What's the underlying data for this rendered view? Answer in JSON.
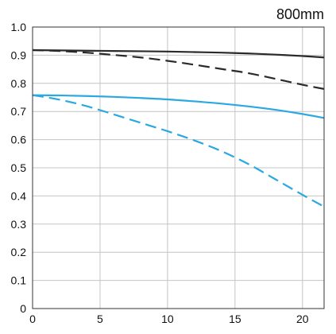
{
  "chart_data": {
    "type": "line",
    "title": "800mm",
    "xlabel": "",
    "ylabel": "",
    "xlim": [
      0,
      21.6
    ],
    "ylim": [
      0,
      1.0
    ],
    "x_ticks": [
      0,
      5,
      10,
      15,
      20
    ],
    "x_tick_labels": [
      "0",
      "5",
      "10",
      "15",
      "20"
    ],
    "y_ticks": [
      0,
      0.1,
      0.2,
      0.3,
      0.4,
      0.5,
      0.6,
      0.7,
      0.8,
      0.9,
      1.0
    ],
    "y_tick_labels": [
      "0",
      "0.1",
      "0.2",
      "0.3",
      "0.4",
      "0.5",
      "0.6",
      "0.7",
      "0.8",
      "0.9",
      "1.0"
    ],
    "grid": true,
    "legend": "none",
    "series": [
      {
        "color": "#2a2a2a",
        "dash": "solid",
        "x": [
          0,
          2,
          4,
          6,
          8,
          10,
          12,
          14,
          16,
          18,
          20,
          21.6
        ],
        "y": [
          0.918,
          0.917,
          0.916,
          0.915,
          0.914,
          0.913,
          0.911,
          0.909,
          0.906,
          0.902,
          0.897,
          0.892
        ]
      },
      {
        "color": "#2a2a2a",
        "dash": "dashed",
        "x": [
          0,
          2,
          4,
          6,
          8,
          10,
          12,
          14,
          16,
          18,
          20,
          21.6
        ],
        "y": [
          0.918,
          0.915,
          0.909,
          0.901,
          0.892,
          0.88,
          0.866,
          0.851,
          0.836,
          0.816,
          0.795,
          0.78
        ]
      },
      {
        "color": "#2aa8e0",
        "dash": "solid",
        "x": [
          0,
          2,
          4,
          6,
          8,
          10,
          12,
          14,
          16,
          18,
          20,
          21.6
        ],
        "y": [
          0.758,
          0.757,
          0.755,
          0.752,
          0.748,
          0.743,
          0.736,
          0.728,
          0.718,
          0.706,
          0.691,
          0.677
        ]
      },
      {
        "color": "#2aa8e0",
        "dash": "dashed",
        "x": [
          0,
          2,
          4,
          6,
          8,
          10,
          12,
          14,
          16,
          18,
          20,
          21.6
        ],
        "y": [
          0.758,
          0.742,
          0.719,
          0.69,
          0.66,
          0.63,
          0.597,
          0.559,
          0.513,
          0.459,
          0.404,
          0.362
        ]
      }
    ]
  }
}
